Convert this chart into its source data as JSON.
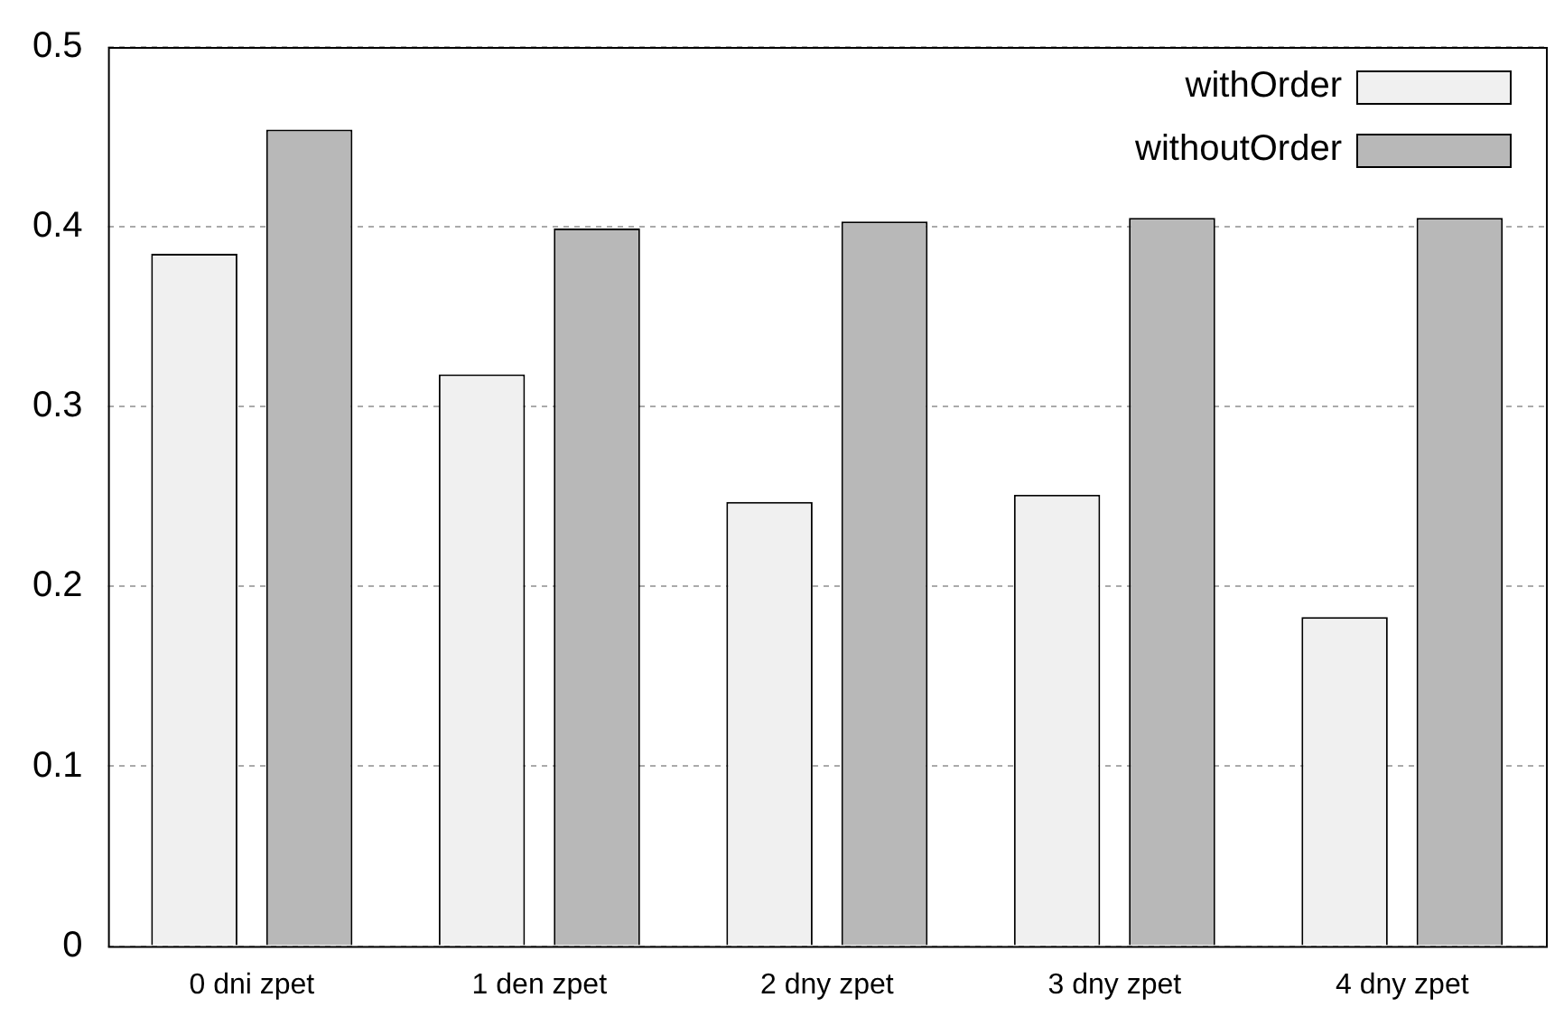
{
  "chart_data": {
    "type": "bar",
    "categories": [
      "0 dni zpet",
      "1 den zpet",
      "2 dny zpet",
      "3 dny zpet",
      "4 dny zpet"
    ],
    "series": [
      {
        "name": "withOrder",
        "color": "#f0f0f0",
        "values": [
          0.385,
          0.318,
          0.247,
          0.251,
          0.183
        ]
      },
      {
        "name": "withoutOrder",
        "color": "#b8b8b8",
        "values": [
          0.454,
          0.399,
          0.403,
          0.405,
          0.405
        ]
      }
    ],
    "ylim": [
      0,
      0.5
    ],
    "yticks": [
      0,
      0.1,
      0.2,
      0.3,
      0.4,
      0.5
    ],
    "grid": "y",
    "legend": "top right"
  }
}
